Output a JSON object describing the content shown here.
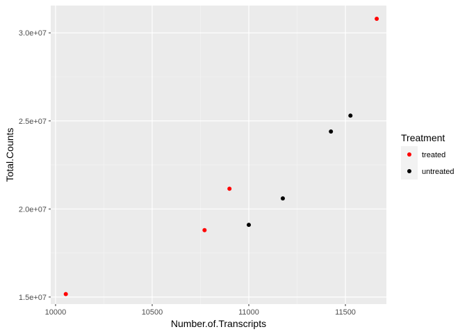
{
  "chart_data": {
    "type": "scatter",
    "title": "",
    "xlabel": "Number.of.Transcripts",
    "ylabel": "Total.Counts",
    "xlim": [
      9975,
      11712
    ],
    "ylim": [
      14600000,
      31550000
    ],
    "xticks": [
      10000,
      10500,
      11000,
      11500
    ],
    "xtick_labels": [
      "10000",
      "10500",
      "11000",
      "11500"
    ],
    "yticks": [
      15000000,
      20000000,
      25000000,
      30000000
    ],
    "ytick_labels": [
      "1.5e+07",
      "2.0e+07",
      "2.5e+07",
      "3.0e+07"
    ],
    "grid": true,
    "background": "#ebebeb",
    "legend": {
      "title": "Treatment",
      "position": "right"
    },
    "series": [
      {
        "name": "treated",
        "color": "#ff0000",
        "points": [
          {
            "x": 10053,
            "y": 15170000
          },
          {
            "x": 10771,
            "y": 18800000
          },
          {
            "x": 10900,
            "y": 21150000
          },
          {
            "x": 11662,
            "y": 30800000
          }
        ]
      },
      {
        "name": "untreated",
        "color": "#000000",
        "points": [
          {
            "x": 11000,
            "y": 19100000
          },
          {
            "x": 11176,
            "y": 20600000
          },
          {
            "x": 11425,
            "y": 24400000
          },
          {
            "x": 11526,
            "y": 25300000
          }
        ]
      }
    ]
  }
}
